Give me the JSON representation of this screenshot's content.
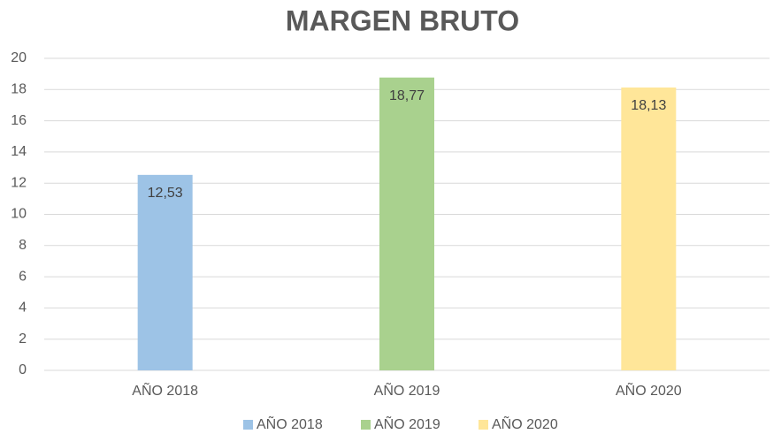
{
  "chart_data": {
    "type": "bar",
    "title": "MARGEN BRUTO",
    "categories": [
      "AÑO 2018",
      "AÑO 2019",
      "AÑO 2020"
    ],
    "values": [
      12.53,
      18.77,
      18.13
    ],
    "value_labels": [
      "12,53",
      "18,77",
      "18,13"
    ],
    "colors": [
      "#9dc3e6",
      "#a9d18e",
      "#ffe699"
    ],
    "ylim": [
      0,
      20
    ],
    "yticks": [
      0,
      2,
      4,
      6,
      8,
      10,
      12,
      14,
      16,
      18,
      20
    ],
    "grid": true,
    "legend": "bottom"
  }
}
